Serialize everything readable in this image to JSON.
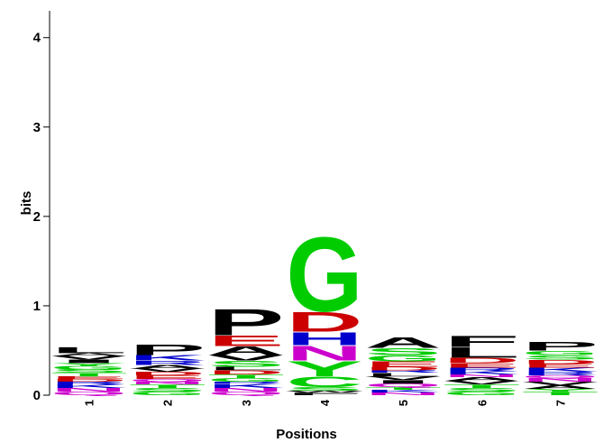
{
  "chart_data": {
    "type": "logo",
    "y_label": "bits",
    "x_label": "Positions",
    "ylim": [
      0,
      4.3
    ],
    "yticks": [
      0,
      1,
      2,
      3,
      4
    ],
    "letter_colors": {
      "A": "#000000",
      "V": "#000000",
      "L": "#000000",
      "I": "#000000",
      "P": "#000000",
      "F": "#000000",
      "W": "#000000",
      "M": "#000000",
      "G": "#00cc00",
      "S": "#00cc00",
      "T": "#00cc00",
      "Y": "#00cc00",
      "C": "#00cc00",
      "K": "#0000cc",
      "R": "#0000cc",
      "H": "#0000cc",
      "D": "#cc0000",
      "E": "#cc0000",
      "N": "#cc00cc",
      "Q": "#cc00cc"
    },
    "categories": [
      "1",
      "2",
      "3",
      "4",
      "5",
      "6",
      "7"
    ],
    "stacks": [
      {
        "letters": [
          "Q",
          "N",
          "K",
          "R",
          "D",
          "E",
          "T",
          "S",
          "G",
          "Y",
          "I",
          "V",
          "A",
          "L"
        ],
        "values": [
          0.04,
          0.04,
          0.04,
          0.03,
          0.03,
          0.03,
          0.04,
          0.04,
          0.04,
          0.03,
          0.04,
          0.04,
          0.03,
          0.07
        ]
      },
      {
        "letters": [
          "G",
          "S",
          "T",
          "N",
          "Q",
          "E",
          "D",
          "V",
          "A",
          "R",
          "K",
          "P"
        ],
        "values": [
          0.04,
          0.04,
          0.04,
          0.03,
          0.03,
          0.04,
          0.04,
          0.04,
          0.04,
          0.05,
          0.06,
          0.12
        ]
      },
      {
        "letters": [
          "Q",
          "N",
          "K",
          "R",
          "G",
          "T",
          "D",
          "L",
          "S",
          "V",
          "A",
          "E",
          "P"
        ],
        "values": [
          0.04,
          0.04,
          0.05,
          0.02,
          0.04,
          0.04,
          0.05,
          0.04,
          0.07,
          0.06,
          0.1,
          0.12,
          0.31
        ]
      },
      {
        "letters": [
          "F",
          "W",
          "S",
          "C",
          "Y",
          "N",
          "H",
          "D",
          "G"
        ],
        "values": [
          0.03,
          0.02,
          0.04,
          0.12,
          0.18,
          0.17,
          0.15,
          0.23,
          0.87
        ]
      },
      {
        "letters": [
          "N",
          "K",
          "T",
          "Q",
          "I",
          "V",
          "L",
          "R",
          "D",
          "E",
          "G",
          "S",
          "A"
        ],
        "values": [
          0.03,
          0.03,
          0.03,
          0.04,
          0.04,
          0.04,
          0.04,
          0.03,
          0.04,
          0.06,
          0.07,
          0.08,
          0.12
        ]
      },
      {
        "letters": [
          "G",
          "S",
          "T",
          "V",
          "A",
          "N",
          "K",
          "R",
          "E",
          "D",
          "L",
          "F"
        ],
        "values": [
          0.04,
          0.04,
          0.04,
          0.04,
          0.04,
          0.03,
          0.04,
          0.04,
          0.05,
          0.06,
          0.12,
          0.13
        ]
      },
      {
        "letters": [
          "T",
          "Y",
          "A",
          "V",
          "N",
          "Q",
          "R",
          "K",
          "E",
          "D",
          "S",
          "G",
          "P"
        ],
        "values": [
          0.04,
          0.03,
          0.04,
          0.04,
          0.04,
          0.03,
          0.04,
          0.05,
          0.04,
          0.05,
          0.05,
          0.05,
          0.1
        ]
      }
    ]
  }
}
